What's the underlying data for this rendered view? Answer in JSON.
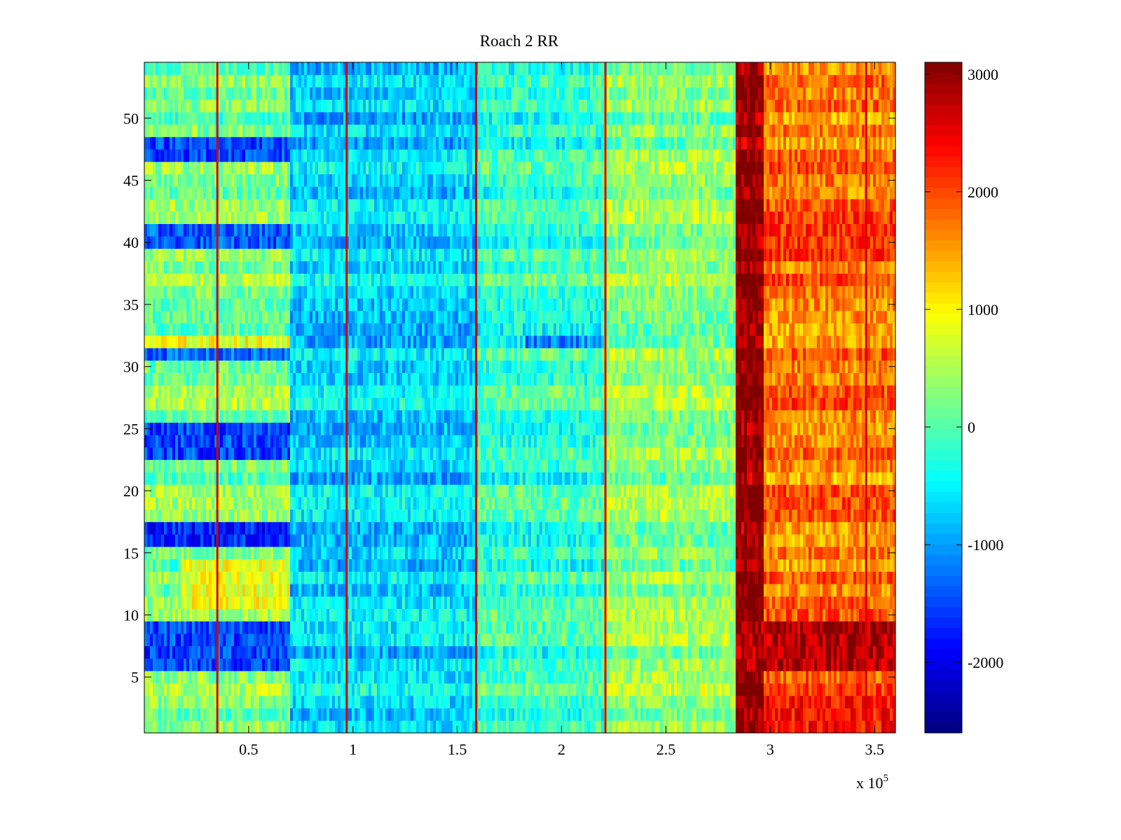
{
  "chart_data": {
    "type": "heatmap",
    "title": "Roach 2 RR",
    "xlabel": "",
    "ylabel": "",
    "x_multiplier_label": "x 10",
    "x_multiplier_exponent": "5",
    "xlim": [
      0,
      360000
    ],
    "ylim": [
      0.5,
      54.5
    ],
    "xticks": [
      0.5,
      1,
      1.5,
      2,
      2.5,
      3,
      3.5
    ],
    "xtick_labels": [
      "0.5",
      "1",
      "1.5",
      "2",
      "2.5",
      "3",
      "3.5"
    ],
    "yticks": [
      5,
      10,
      15,
      20,
      25,
      30,
      35,
      40,
      45,
      50
    ],
    "ytick_labels": [
      "5",
      "10",
      "15",
      "20",
      "25",
      "30",
      "35",
      "40",
      "45",
      "50"
    ],
    "colormap": "jet",
    "clim": [
      -2600,
      3100
    ],
    "colorbar_ticks": [
      3000,
      2000,
      1000,
      0,
      -1000,
      -2000
    ],
    "colorbar_tick_labels": [
      "3000",
      "2000",
      "1000",
      "0",
      "-1000",
      "-2000"
    ],
    "grid": false,
    "rows": 54,
    "time_segments": [
      {
        "x_start": 0,
        "x_end": 70000,
        "typical_value": 200
      },
      {
        "x_start": 70000,
        "x_end": 160000,
        "typical_value": -700
      },
      {
        "x_start": 160000,
        "x_end": 220000,
        "typical_value": -200
      },
      {
        "x_start": 220000,
        "x_end": 283000,
        "typical_value": 300
      },
      {
        "x_start": 283000,
        "x_end": 297000,
        "typical_value": 3000
      },
      {
        "x_start": 297000,
        "x_end": 360000,
        "typical_value": 1700
      }
    ],
    "spike_lines_x": [
      35000,
      97000,
      159000,
      221000,
      346000
    ],
    "band_overrides": [
      {
        "rows": [
          47,
          48
        ],
        "x_start": 0,
        "x_end": 70000,
        "value": -1500
      },
      {
        "rows": [
          40,
          41
        ],
        "x_start": 0,
        "x_end": 70000,
        "value": -1400
      },
      {
        "rows": [
          31
        ],
        "x_start": 0,
        "x_end": 70000,
        "value": -1300
      },
      {
        "rows": [
          32
        ],
        "x_start": 0,
        "x_end": 70000,
        "value": 900
      },
      {
        "rows": [
          32
        ],
        "x_start": 183000,
        "x_end": 220000,
        "value": -1100
      },
      {
        "rows": [
          23,
          24,
          25
        ],
        "x_start": 0,
        "x_end": 70000,
        "value": -1500
      },
      {
        "rows": [
          16,
          17
        ],
        "x_start": 0,
        "x_end": 70000,
        "value": -1700
      },
      {
        "rows": [
          11,
          12,
          13,
          14
        ],
        "x_start": 18000,
        "x_end": 70000,
        "value": 850
      },
      {
        "rows": [
          6,
          7,
          8,
          9
        ],
        "x_start": 0,
        "x_end": 70000,
        "value": -1500
      },
      {
        "rows": [
          6,
          7,
          8,
          9
        ],
        "x_start": 283000,
        "x_end": 360000,
        "value": 2800
      },
      {
        "rows": [
          1,
          2,
          3
        ],
        "x_start": 297000,
        "x_end": 360000,
        "value": 2300
      },
      {
        "rows": [
          39,
          40,
          41,
          42
        ],
        "x_start": 297000,
        "x_end": 360000,
        "value": 2100
      }
    ]
  }
}
